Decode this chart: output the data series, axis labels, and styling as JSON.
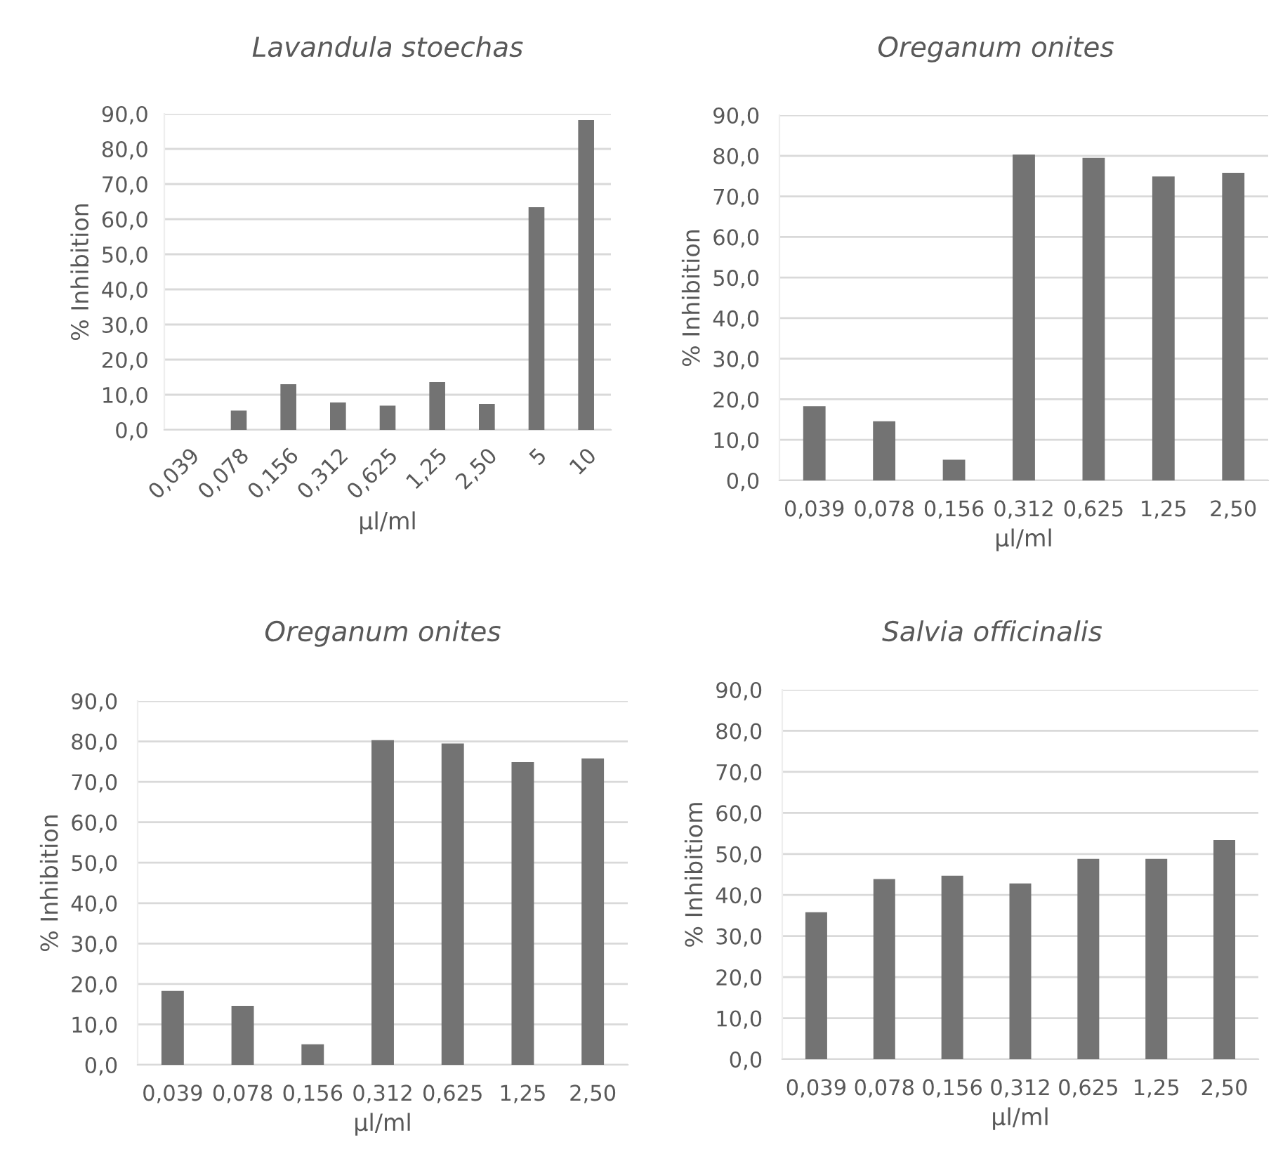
{
  "chart_data": [
    {
      "type": "bar",
      "title": "Lavandula stoechas",
      "xlabel": "µl/ml",
      "ylabel": "% Inhibition",
      "categories": [
        "0,039",
        "0,078",
        "0,156",
        "0,312",
        "0,625",
        "1,25",
        "2,50",
        "5",
        "10"
      ],
      "values": [
        0,
        5.5,
        13.0,
        7.8,
        6.9,
        13.6,
        7.4,
        63.4,
        88.2
      ],
      "color": "#737373",
      "ylim": [
        0,
        90
      ],
      "yticks": [
        {
          "value": 0,
          "label": "0,0"
        },
        {
          "value": 10,
          "label": "10,0"
        },
        {
          "value": 20,
          "label": "20,0"
        },
        {
          "value": 30,
          "label": "30,0"
        },
        {
          "value": 40,
          "label": "40,0"
        },
        {
          "value": 50,
          "label": "50,0"
        },
        {
          "value": 60,
          "label": "60,0"
        },
        {
          "value": 70,
          "label": "70,0"
        },
        {
          "value": 80,
          "label": "80,0"
        },
        {
          "value": 90,
          "label": "90,0"
        }
      ],
      "grid": "y"
    },
    {
      "type": "bar",
      "title": "Oreganum onites",
      "xlabel": "µl/ml",
      "ylabel": "% Inhibition",
      "categories": [
        "0,039",
        "0,078",
        "0,156",
        "0,312",
        "0,625",
        "1,25",
        "2,50"
      ],
      "values": [
        18.3,
        14.6,
        5.1,
        80.3,
        79.5,
        74.9,
        75.8
      ],
      "color": "#737373",
      "ylim": [
        0,
        90
      ],
      "yticks": [
        {
          "value": 0,
          "label": "0,0"
        },
        {
          "value": 10,
          "label": "10,0"
        },
        {
          "value": 20,
          "label": "20,0"
        },
        {
          "value": 30,
          "label": "30,0"
        },
        {
          "value": 40,
          "label": "40,0"
        },
        {
          "value": 50,
          "label": "50,0"
        },
        {
          "value": 60,
          "label": "60,0"
        },
        {
          "value": 70,
          "label": "70,0"
        },
        {
          "value": 80,
          "label": "80,0"
        },
        {
          "value": 90,
          "label": "90,0"
        }
      ],
      "grid": "y"
    },
    {
      "type": "bar",
      "title": "Oreganum onites",
      "xlabel": "µl/ml",
      "ylabel": "% Inhibition",
      "categories": [
        "0,039",
        "0,078",
        "0,156",
        "0,312",
        "0,625",
        "1,25",
        "2,50"
      ],
      "values": [
        18.3,
        14.6,
        5.1,
        80.3,
        79.5,
        74.9,
        75.8
      ],
      "color": "#737373",
      "ylim": [
        0,
        90
      ],
      "yticks": [
        {
          "value": 0,
          "label": "0,0"
        },
        {
          "value": 10,
          "label": "10,0"
        },
        {
          "value": 20,
          "label": "20,0"
        },
        {
          "value": 30,
          "label": "30,0"
        },
        {
          "value": 40,
          "label": "40,0"
        },
        {
          "value": 50,
          "label": "50,0"
        },
        {
          "value": 60,
          "label": "60,0"
        },
        {
          "value": 70,
          "label": "70,0"
        },
        {
          "value": 80,
          "label": "80,0"
        },
        {
          "value": 90,
          "label": "90,0"
        }
      ],
      "grid": "y"
    },
    {
      "type": "bar",
      "title": "Salvia officinalis",
      "xlabel": "µl/ml",
      "ylabel": "% Inhibitiom",
      "categories": [
        "0,039",
        "0,078",
        "0,156",
        "0,312",
        "0,625",
        "1,25",
        "2,50"
      ],
      "values": [
        35.8,
        43.9,
        44.7,
        42.8,
        48.8,
        48.8,
        53.4
      ],
      "color": "#737373",
      "ylim": [
        0,
        90
      ],
      "yticks": [
        {
          "value": 0,
          "label": "0,0"
        },
        {
          "value": 10,
          "label": "10,0"
        },
        {
          "value": 20,
          "label": "20,0"
        },
        {
          "value": 30,
          "label": "30,0"
        },
        {
          "value": 40,
          "label": "40,0"
        },
        {
          "value": 50,
          "label": "50,0"
        },
        {
          "value": 60,
          "label": "60,0"
        },
        {
          "value": 70,
          "label": "70,0"
        },
        {
          "value": 80,
          "label": "80,0"
        },
        {
          "value": 90,
          "label": "90,0"
        }
      ],
      "grid": "y"
    }
  ]
}
